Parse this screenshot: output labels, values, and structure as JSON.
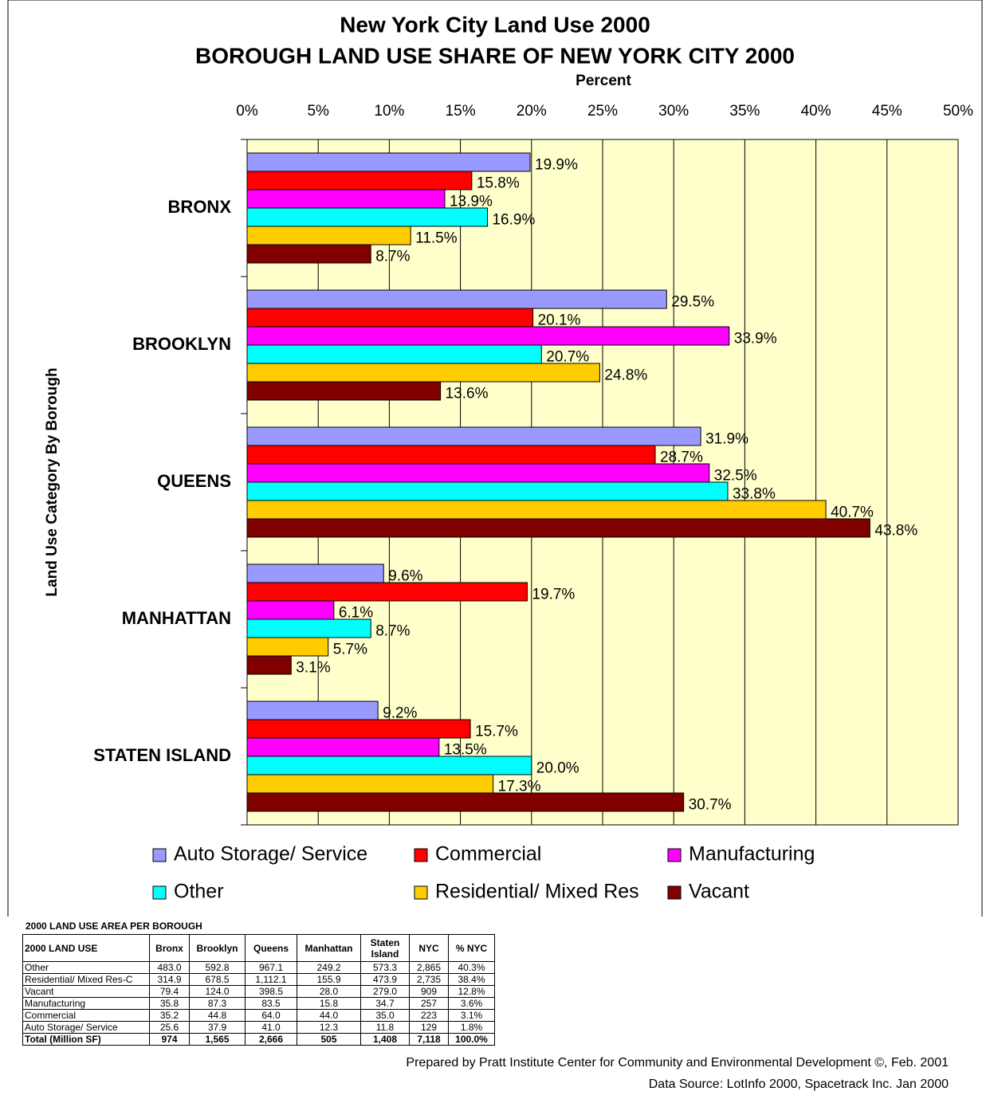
{
  "chart_data": {
    "type": "hbar",
    "title": "New York City Land Use 2000",
    "subtitle": "BOROUGH LAND USE SHARE OF NEW YORK CITY 2000",
    "x_label": "Percent",
    "y_label": "Land Use Category By Borough",
    "categories": [
      "BRONX",
      "BROOKLYN",
      "QUEENS",
      "MANHATTAN",
      "STATEN ISLAND"
    ],
    "series": [
      {
        "name": "Auto Storage/ Service",
        "color": "#9999ff",
        "values": [
          19.9,
          29.5,
          31.9,
          9.6,
          9.2
        ],
        "value_labels": [
          "19.9%",
          "29.5%",
          "31.9%",
          "9.6%",
          "9.2%"
        ]
      },
      {
        "name": "Commercial",
        "color": "#ff0000",
        "values": [
          15.8,
          20.1,
          28.7,
          19.7,
          15.7
        ],
        "value_labels": [
          "15.8%",
          "20.1%",
          "28.7%",
          "19.7%",
          "15.7%"
        ]
      },
      {
        "name": "Manufacturing",
        "color": "#ff00ff",
        "values": [
          13.9,
          33.9,
          32.5,
          6.1,
          13.5
        ],
        "value_labels": [
          "13.9%",
          "33.9%",
          "32.5%",
          "6.1%",
          "13.5%"
        ]
      },
      {
        "name": "Other",
        "color": "#00ffff",
        "values": [
          16.9,
          20.7,
          33.8,
          8.7,
          20.0
        ],
        "value_labels": [
          "16.9%",
          "20.7%",
          "33.8%",
          "8.7%",
          "20.0%"
        ]
      },
      {
        "name": "Residential/ Mixed Res",
        "color": "#ffcc00",
        "values": [
          11.5,
          24.8,
          40.7,
          5.7,
          17.3
        ],
        "value_labels": [
          "11.5%",
          "24.8%",
          "40.7%",
          "5.7%",
          "17.3%"
        ]
      },
      {
        "name": "Vacant",
        "color": "#800000",
        "values": [
          8.7,
          13.6,
          43.8,
          3.1,
          30.7
        ],
        "value_labels": [
          "8.7%",
          "13.6%",
          "43.8%",
          "3.1%",
          "30.7%"
        ]
      }
    ],
    "xlim": [
      0,
      50
    ],
    "xticks": [
      {
        "value": 0,
        "label": "0%"
      },
      {
        "value": 5,
        "label": "5%"
      },
      {
        "value": 10,
        "label": "10%"
      },
      {
        "value": 15,
        "label": "15%"
      },
      {
        "value": 20,
        "label": "20%"
      },
      {
        "value": 25,
        "label": "25%"
      },
      {
        "value": 30,
        "label": "30%"
      },
      {
        "value": 35,
        "label": "35%"
      },
      {
        "value": 40,
        "label": "40%"
      },
      {
        "value": 45,
        "label": "45%"
      },
      {
        "value": 50,
        "label": "50%"
      }
    ],
    "grid": true,
    "background": "#ffffcc",
    "legend": "bottom"
  },
  "table": {
    "title": "2000 LAND USE AREA PER BOROUGH",
    "header": [
      "2000 LAND USE",
      "Bronx",
      "Brooklyn",
      "Queens",
      "Manhattan",
      "Staten Island",
      "NYC",
      "% NYC"
    ],
    "rows": [
      [
        "Other",
        "483.0",
        "592.8",
        "967.1",
        "249.2",
        "573.3",
        "2,865",
        "40.3%"
      ],
      [
        "Residential/ Mixed Res-C",
        "314.9",
        "678.5",
        "1,112.1",
        "155.9",
        "473.9",
        "2,735",
        "38.4%"
      ],
      [
        "Vacant",
        "79.4",
        "124.0",
        "398.5",
        "28.0",
        "279.0",
        "909",
        "12.8%"
      ],
      [
        "Manufacturing",
        "35.8",
        "87.3",
        "83.5",
        "15.8",
        "34.7",
        "257",
        "3.6%"
      ],
      [
        "Commercial",
        "35.2",
        "44.8",
        "64.0",
        "44.0",
        "35.0",
        "223",
        "3.1%"
      ],
      [
        "Auto Storage/ Service",
        "25.6",
        "37.9",
        "41.0",
        "12.3",
        "11.8",
        "129",
        "1.8%"
      ],
      [
        "Total (Million SF)",
        "974",
        "1,565",
        "2,666",
        "505",
        "1,408",
        "7,118",
        "100.0%"
      ]
    ]
  },
  "notes": [
    "Prepared by Pratt Institute Center for Community and Environmental Development ©, Feb. 2001",
    "Data Source:  LotInfo 2000, Spacetrack Inc. Jan 2000"
  ]
}
